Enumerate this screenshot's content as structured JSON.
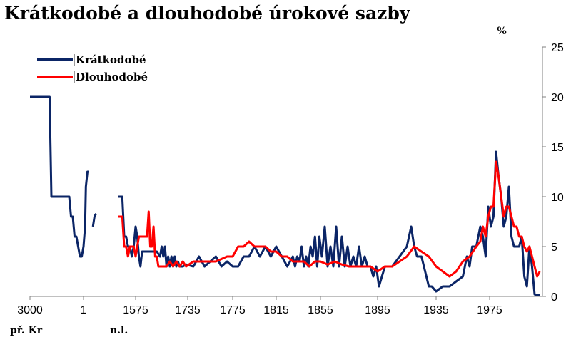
{
  "chart_data": {
    "type": "line",
    "title": "Krátkodobé a dlouhodobé úrokové sazby",
    "ylabel": "%",
    "ylim": [
      0,
      25
    ],
    "yticks": [
      0,
      5,
      10,
      15,
      20,
      25
    ],
    "y_axis_side": "right",
    "xticks": [
      "3000",
      "1",
      "1575",
      "1735",
      "1775",
      "1815",
      "1855",
      "1895",
      "1935",
      "1975"
    ],
    "x_sublabels": [
      {
        "under": "3000",
        "text": "př. Kr"
      },
      {
        "under": "1575",
        "text": "n.l."
      }
    ],
    "legend_position": "top-left",
    "grid": false,
    "series": [
      {
        "name": "Krátkodobé",
        "color": "#0b2566",
        "segments": [
          [
            [
              "-3000",
              20
            ],
            [
              "-1900",
              20
            ],
            [
              "-1800",
              10
            ],
            [
              "-1200",
              10
            ],
            [
              "-1000",
              10
            ],
            [
              "-800",
              10
            ],
            [
              "-700",
              8
            ],
            [
              "-600",
              8
            ],
            [
              "-500",
              6
            ],
            [
              "-400",
              6
            ],
            [
              "-300",
              5
            ],
            [
              "-200",
              4
            ],
            [
              "-100",
              4
            ],
            [
              "0",
              5
            ],
            [
              "100",
              7
            ],
            [
              "150",
              11
            ],
            [
              "250",
              12.5
            ],
            [
              "350",
              12.5
            ]
          ],
          [
            [
              "600",
              7
            ],
            [
              "700",
              8
            ],
            [
              "800",
              8.3
            ]
          ],
          [
            [
              "1530",
              10
            ],
            [
              "1540",
              10
            ],
            [
              "1545",
              6
            ],
            [
              "1550",
              6
            ],
            [
              "1555",
              5
            ],
            [
              "1560",
              5
            ],
            [
              "1565",
              4
            ],
            [
              "1570",
              5
            ],
            [
              "1575",
              7
            ],
            [
              "1580",
              6
            ],
            [
              "1585",
              4
            ],
            [
              "1590",
              3
            ],
            [
              "1595",
              4.5
            ],
            [
              "1600",
              4.5
            ],
            [
              "1620",
              4.5
            ],
            [
              "1640",
              4.5
            ],
            [
              "1650",
              4
            ],
            [
              "1655",
              5
            ],
            [
              "1660",
              4
            ],
            [
              "1665",
              5
            ],
            [
              "1670",
              3
            ],
            [
              "1675",
              4
            ],
            [
              "1680",
              3
            ],
            [
              "1685",
              4
            ],
            [
              "1690",
              3
            ],
            [
              "1695",
              4
            ],
            [
              "1700",
              3
            ],
            [
              "1705",
              3.5
            ],
            [
              "1710",
              3
            ],
            [
              "1720",
              3
            ],
            [
              "1730",
              3.2
            ],
            [
              "1740",
              3
            ],
            [
              "1745",
              4
            ],
            [
              "1750",
              3
            ],
            [
              "1755",
              3.5
            ],
            [
              "1760",
              4
            ],
            [
              "1765",
              3
            ],
            [
              "1770",
              3.5
            ],
            [
              "1775",
              3
            ],
            [
              "1780",
              3
            ],
            [
              "1785",
              4
            ],
            [
              "1790",
              4
            ],
            [
              "1795",
              5
            ],
            [
              "1800",
              4
            ],
            [
              "1805",
              5
            ],
            [
              "1810",
              4
            ],
            [
              "1815",
              5
            ],
            [
              "1820",
              4
            ],
            [
              "1825",
              3
            ],
            [
              "1830",
              4
            ],
            [
              "1832",
              3
            ],
            [
              "1834",
              4
            ],
            [
              "1836",
              3.5
            ],
            [
              "1838",
              5
            ],
            [
              "1840",
              3
            ],
            [
              "1842",
              4
            ],
            [
              "1844",
              3
            ],
            [
              "1846",
              5
            ],
            [
              "1848",
              4
            ],
            [
              "1850",
              6
            ],
            [
              "1852",
              3
            ],
            [
              "1854",
              6
            ],
            [
              "1856",
              4
            ],
            [
              "1858",
              7
            ],
            [
              "1860",
              3
            ],
            [
              "1862",
              5
            ],
            [
              "1864",
              3
            ],
            [
              "1866",
              7
            ],
            [
              "1868",
              3
            ],
            [
              "1870",
              6
            ],
            [
              "1872",
              3
            ],
            [
              "1874",
              5
            ],
            [
              "1876",
              3
            ],
            [
              "1878",
              4
            ],
            [
              "1880",
              3
            ],
            [
              "1882",
              5
            ],
            [
              "1884",
              3
            ],
            [
              "1886",
              4
            ],
            [
              "1888",
              3
            ],
            [
              "1890",
              3
            ],
            [
              "1892",
              2
            ],
            [
              "1894",
              3
            ],
            [
              "1896",
              1
            ],
            [
              "1898",
              2
            ],
            [
              "1900",
              3
            ],
            [
              "1905",
              3
            ],
            [
              "1910",
              4
            ],
            [
              "1915",
              5
            ],
            [
              "1918",
              7
            ],
            [
              "1920",
              5
            ],
            [
              "1922",
              4
            ],
            [
              "1925",
              4
            ],
            [
              "1930",
              1
            ],
            [
              "1932",
              1
            ],
            [
              "1935",
              0.5
            ],
            [
              "1940",
              1
            ],
            [
              "1945",
              1
            ],
            [
              "1950",
              1.5
            ],
            [
              "1955",
              2
            ],
            [
              "1958",
              4
            ],
            [
              "1960",
              3
            ],
            [
              "1962",
              5
            ],
            [
              "1965",
              5
            ],
            [
              "1968",
              7
            ],
            [
              "1970",
              6
            ],
            [
              "1972",
              4
            ],
            [
              "1974",
              9
            ],
            [
              "1976",
              7
            ],
            [
              "1978",
              8
            ],
            [
              "1980",
              14.5
            ],
            [
              "1982",
              12
            ],
            [
              "1984",
              10
            ],
            [
              "1986",
              7
            ],
            [
              "1988",
              8
            ],
            [
              "1990",
              11
            ],
            [
              "1992",
              6
            ],
            [
              "1994",
              5
            ],
            [
              "1996",
              5
            ],
            [
              "1998",
              5
            ],
            [
              "2000",
              6
            ],
            [
              "2002",
              2
            ],
            [
              "2004",
              1
            ],
            [
              "2006",
              5
            ],
            [
              "2008",
              3
            ],
            [
              "2010",
              0.2
            ],
            [
              "2014",
              0.1
            ]
          ]
        ]
      },
      {
        "name": "Dlouhodobé",
        "color": "#ff0000",
        "segments": [
          [
            [
              "1530",
              8
            ],
            [
              "1540",
              8
            ],
            [
              "1545",
              5
            ],
            [
              "1550",
              5
            ],
            [
              "1555",
              4
            ],
            [
              "1560",
              5
            ],
            [
              "1565",
              5
            ],
            [
              "1570",
              5
            ],
            [
              "1575",
              4
            ],
            [
              "1580",
              5
            ],
            [
              "1585",
              6
            ],
            [
              "1590",
              6
            ],
            [
              "1600",
              6
            ],
            [
              "1610",
              6
            ],
            [
              "1615",
              8.5
            ],
            [
              "1620",
              5
            ],
            [
              "1625",
              5
            ],
            [
              "1630",
              7
            ],
            [
              "1635",
              4
            ],
            [
              "1640",
              4
            ],
            [
              "1645",
              3
            ],
            [
              "1660",
              3
            ],
            [
              "1670",
              3
            ],
            [
              "1680",
              3.5
            ],
            [
              "1690",
              3
            ],
            [
              "1700",
              3.5
            ],
            [
              "1710",
              3
            ],
            [
              "1720",
              3.5
            ],
            [
              "1730",
              3
            ],
            [
              "1740",
              3.5
            ],
            [
              "1750",
              3.5
            ],
            [
              "1760",
              3.5
            ],
            [
              "1770",
              4
            ],
            [
              "1775",
              4
            ],
            [
              "1780",
              5
            ],
            [
              "1785",
              5
            ],
            [
              "1790",
              5.5
            ],
            [
              "1795",
              5
            ],
            [
              "1800",
              5
            ],
            [
              "1805",
              5
            ],
            [
              "1810",
              4.5
            ],
            [
              "1815",
              4.5
            ],
            [
              "1820",
              4
            ],
            [
              "1825",
              4
            ],
            [
              "1830",
              3.5
            ],
            [
              "1835",
              3.5
            ],
            [
              "1840",
              3.5
            ],
            [
              "1845",
              3
            ],
            [
              "1850",
              3.5
            ],
            [
              "1855",
              3.5
            ],
            [
              "1860",
              3.2
            ],
            [
              "1865",
              3.5
            ],
            [
              "1870",
              3.2
            ],
            [
              "1875",
              3
            ],
            [
              "1880",
              3
            ],
            [
              "1885",
              3
            ],
            [
              "1890",
              3
            ],
            [
              "1895",
              2.5
            ],
            [
              "1900",
              3
            ],
            [
              "1905",
              3
            ],
            [
              "1910",
              3.5
            ],
            [
              "1915",
              4
            ],
            [
              "1920",
              5
            ],
            [
              "1925",
              4.5
            ],
            [
              "1930",
              4
            ],
            [
              "1935",
              3
            ],
            [
              "1940",
              2.5
            ],
            [
              "1945",
              2
            ],
            [
              "1950",
              2.5
            ],
            [
              "1955",
              3.5
            ],
            [
              "1960",
              4
            ],
            [
              "1965",
              5
            ],
            [
              "1968",
              5.5
            ],
            [
              "1970",
              7
            ],
            [
              "1972",
              6
            ],
            [
              "1974",
              8
            ],
            [
              "1976",
              9
            ],
            [
              "1978",
              9
            ],
            [
              "1980",
              13.5
            ],
            [
              "1982",
              12
            ],
            [
              "1984",
              10
            ],
            [
              "1986",
              8
            ],
            [
              "1988",
              9
            ],
            [
              "1990",
              9
            ],
            [
              "1992",
              8
            ],
            [
              "1994",
              7
            ],
            [
              "1996",
              7
            ],
            [
              "1998",
              6
            ],
            [
              "2000",
              6
            ],
            [
              "2002",
              5
            ],
            [
              "2004",
              4.5
            ],
            [
              "2006",
              5
            ],
            [
              "2008",
              4
            ],
            [
              "2010",
              3
            ],
            [
              "2012",
              2
            ],
            [
              "2014",
              2.5
            ]
          ]
        ]
      }
    ]
  }
}
